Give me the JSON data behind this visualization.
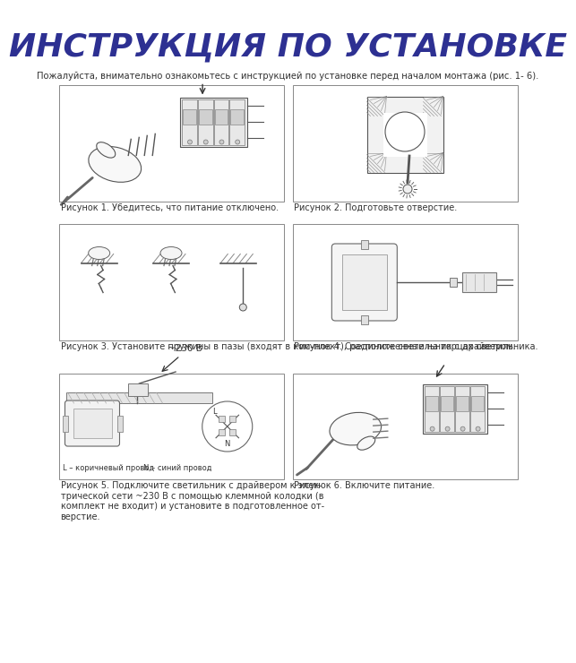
{
  "title": "ИНСТРУКЦИЯ ПО УСТАНОВКЕ",
  "title_color": "#2d3092",
  "title_fontsize": 26,
  "intro_text": "Пожалуйста, внимательно ознакомьтесь с инструкцией по установке перед началом монтажа (рис. 1- 6).",
  "cap1": "Рисунок 1. Убедитесь, что питание отключено.",
  "cap2": "Рисунок 2. Подготовьте отверстие.",
  "cap3": "Рисунок 3. Установите пружины в пазы (входят в ком-плект), расположенные на торцах светильника.",
  "cap4": "Рисунок 4. Соедините светильник с драйвером.",
  "cap5": "Рисунок 5. Подключите светильник с драйвером к элек-\nтрической сети ~230 В с помощью клеммной колодки (в\nкомплект не входит) и установите в подготовленное от-\nверстие.",
  "cap6": "Рисунок 6. Включите питание.",
  "label_L": "L – коричневый провод",
  "label_N": "N – синий провод",
  "label_230": "~230 В",
  "bg_color": "#ffffff",
  "line_color": "#333333",
  "caption_fontsize": 7.0,
  "intro_fontsize": 7.2
}
